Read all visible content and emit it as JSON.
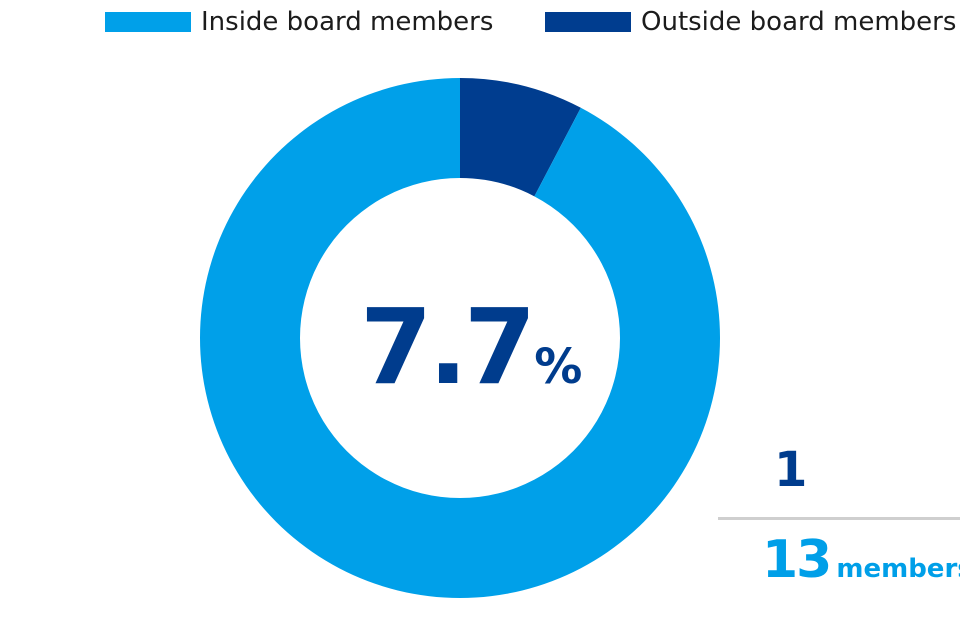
{
  "colors": {
    "inside": "#00a0e9",
    "outside": "#003d8f"
  },
  "chart_data": {
    "type": "pie",
    "categories": [
      "Outside board members",
      "Inside board members"
    ],
    "values": [
      1,
      12
    ],
    "center_value": "7.7",
    "center_unit": "%",
    "legend_position": "top"
  },
  "legend": {
    "inside_label": "Inside board members",
    "outside_label": "Outside board members"
  },
  "fraction": {
    "numerator": "1",
    "denominator": "13",
    "unit": "members"
  }
}
